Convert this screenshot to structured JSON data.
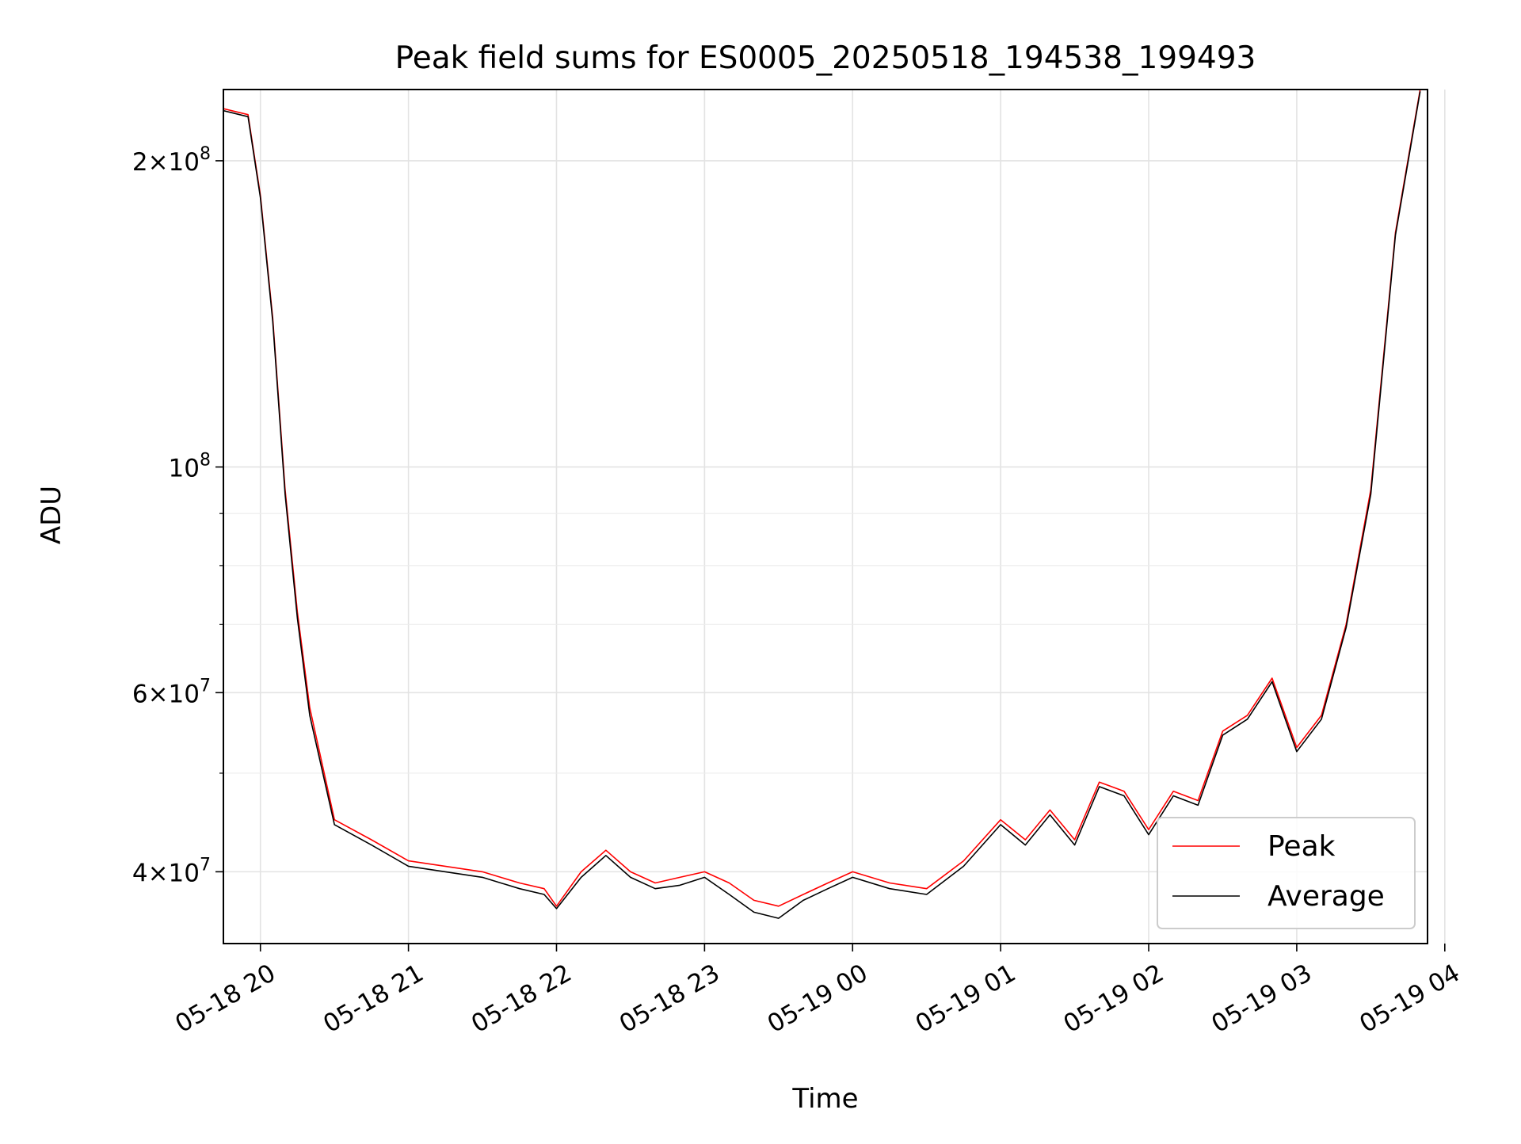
{
  "chart_data": {
    "type": "line",
    "title": "Peak field sums for ES0005_20250518_194538_199493",
    "xlabel": "Time",
    "ylabel": "ADU",
    "yscale": "log",
    "xlim": [
      "2025-05-18T19:45",
      "2025-05-19T03:53"
    ],
    "ylim": [
      34000000,
      235000000
    ],
    "grid": true,
    "legend_position": "lower right",
    "x_ticks": [
      {
        "value": "2025-05-18T20:00",
        "label": "05-18 20"
      },
      {
        "value": "2025-05-18T21:00",
        "label": "05-18 21"
      },
      {
        "value": "2025-05-18T22:00",
        "label": "05-18 22"
      },
      {
        "value": "2025-05-18T23:00",
        "label": "05-18 23"
      },
      {
        "value": "2025-05-19T00:00",
        "label": "05-19 00"
      },
      {
        "value": "2025-05-19T01:00",
        "label": "05-19 01"
      },
      {
        "value": "2025-05-19T02:00",
        "label": "05-19 02"
      },
      {
        "value": "2025-05-19T03:00",
        "label": "05-19 03"
      },
      {
        "value": "2025-05-19T04:00",
        "label": "05-19 04"
      }
    ],
    "y_ticks": [
      {
        "value": 40000000,
        "mantissa": "4",
        "exponent": "7"
      },
      {
        "value": 60000000,
        "mantissa": "6",
        "exponent": "7"
      },
      {
        "value": 100000000,
        "mantissa": "",
        "exponent": "8"
      },
      {
        "value": 200000000,
        "mantissa": "2",
        "exponent": "8"
      }
    ],
    "y_minor_ticks": [
      50000000,
      70000000,
      80000000,
      90000000
    ],
    "series": [
      {
        "name": "Peak",
        "color": "#ff0000",
        "x": [
          "2025-05-18T19:45",
          "2025-05-18T19:55",
          "2025-05-18T20:00",
          "2025-05-18T20:05",
          "2025-05-18T20:10",
          "2025-05-18T20:15",
          "2025-05-18T20:20",
          "2025-05-18T20:30",
          "2025-05-18T20:45",
          "2025-05-18T21:00",
          "2025-05-18T21:30",
          "2025-05-18T21:45",
          "2025-05-18T21:55",
          "2025-05-18T22:00",
          "2025-05-18T22:10",
          "2025-05-18T22:20",
          "2025-05-18T22:30",
          "2025-05-18T22:40",
          "2025-05-18T22:50",
          "2025-05-18T23:00",
          "2025-05-18T23:10",
          "2025-05-18T23:20",
          "2025-05-18T23:30",
          "2025-05-18T23:40",
          "2025-05-18T23:50",
          "2025-05-19T00:00",
          "2025-05-19T00:15",
          "2025-05-19T00:30",
          "2025-05-19T00:45",
          "2025-05-19T01:00",
          "2025-05-19T01:10",
          "2025-05-19T01:20",
          "2025-05-19T01:30",
          "2025-05-19T01:40",
          "2025-05-19T01:50",
          "2025-05-19T02:00",
          "2025-05-19T02:10",
          "2025-05-19T02:20",
          "2025-05-19T02:30",
          "2025-05-19T02:40",
          "2025-05-19T02:50",
          "2025-05-19T03:00",
          "2025-05-19T03:10",
          "2025-05-19T03:20",
          "2025-05-19T03:30",
          "2025-05-19T03:40",
          "2025-05-19T03:50"
        ],
        "y": [
          225000000,
          222000000,
          185000000,
          140000000,
          95000000,
          72000000,
          58000000,
          45000000,
          43000000,
          41000000,
          40000000,
          39000000,
          38500000,
          37000000,
          40000000,
          42000000,
          40000000,
          39000000,
          39500000,
          40000000,
          39000000,
          37500000,
          37000000,
          38000000,
          39000000,
          40000000,
          39000000,
          38500000,
          41000000,
          45000000,
          43000000,
          46000000,
          43000000,
          49000000,
          48000000,
          44000000,
          48000000,
          47000000,
          55000000,
          57000000,
          62000000,
          53000000,
          57000000,
          70000000,
          95000000,
          170000000,
          235000000
        ]
      },
      {
        "name": "Average",
        "color": "#000000",
        "x": [
          "2025-05-18T19:45",
          "2025-05-18T19:55",
          "2025-05-18T20:00",
          "2025-05-18T20:05",
          "2025-05-18T20:10",
          "2025-05-18T20:15",
          "2025-05-18T20:20",
          "2025-05-18T20:30",
          "2025-05-18T20:45",
          "2025-05-18T21:00",
          "2025-05-18T21:30",
          "2025-05-18T21:45",
          "2025-05-18T21:55",
          "2025-05-18T22:00",
          "2025-05-18T22:10",
          "2025-05-18T22:20",
          "2025-05-18T22:30",
          "2025-05-18T22:40",
          "2025-05-18T22:50",
          "2025-05-18T23:00",
          "2025-05-18T23:10",
          "2025-05-18T23:20",
          "2025-05-18T23:30",
          "2025-05-18T23:40",
          "2025-05-18T23:50",
          "2025-05-19T00:00",
          "2025-05-19T00:15",
          "2025-05-19T00:30",
          "2025-05-19T00:45",
          "2025-05-19T01:00",
          "2025-05-19T01:10",
          "2025-05-19T01:20",
          "2025-05-19T01:30",
          "2025-05-19T01:40",
          "2025-05-19T01:50",
          "2025-05-19T02:00",
          "2025-05-19T02:10",
          "2025-05-19T02:20",
          "2025-05-19T02:30",
          "2025-05-19T02:40",
          "2025-05-19T02:50",
          "2025-05-19T03:00",
          "2025-05-19T03:10",
          "2025-05-19T03:20",
          "2025-05-19T03:30",
          "2025-05-19T03:40",
          "2025-05-19T03:50"
        ],
        "y": [
          224000000,
          221000000,
          184000000,
          139000000,
          94000000,
          71000000,
          57000000,
          44500000,
          42500000,
          40500000,
          39500000,
          38500000,
          38000000,
          36800000,
          39500000,
          41500000,
          39500000,
          38500000,
          38800000,
          39500000,
          38000000,
          36500000,
          36000000,
          37500000,
          38500000,
          39500000,
          38500000,
          38000000,
          40500000,
          44500000,
          42500000,
          45500000,
          42500000,
          48500000,
          47500000,
          43500000,
          47500000,
          46500000,
          54500000,
          56500000,
          61500000,
          52500000,
          56500000,
          69500000,
          94000000,
          169000000,
          234000000
        ]
      }
    ]
  }
}
